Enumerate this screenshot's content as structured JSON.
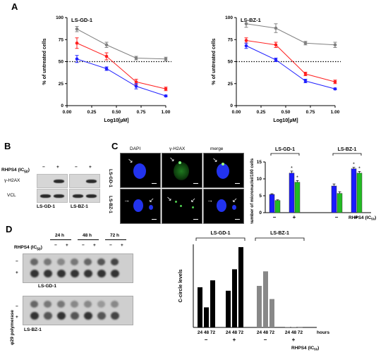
{
  "panels": {
    "a": "A",
    "b": "B",
    "c": "C",
    "d": "D"
  },
  "panel_a": {
    "chart_data": [
      {
        "type": "line",
        "title": "LS-GD-1",
        "xlabel": "Log10[µM]",
        "ylabel": "% of untreated cells",
        "xlim": [
          0,
          1.0
        ],
        "ylim": [
          0,
          100
        ],
        "xticks": [
          "0.00",
          "0.25",
          "0.50",
          "0.75",
          "1.00"
        ],
        "yticks": [
          "0",
          "25",
          "50",
          "75",
          "100"
        ],
        "reference_line": 50,
        "series": [
          {
            "color": "#808080",
            "x": [
              0.1,
              0.4,
              0.7,
              1.0
            ],
            "y": [
              87,
              69,
              54,
              53
            ],
            "err": [
              3,
              3,
              2,
              2
            ]
          },
          {
            "color": "#ff2020",
            "x": [
              0.1,
              0.4,
              0.7,
              1.0
            ],
            "y": [
              71,
              56,
              27,
              19
            ],
            "err": [
              6,
              4,
              3,
              2
            ]
          },
          {
            "color": "#2020ff",
            "x": [
              0.1,
              0.4,
              0.7,
              1.0
            ],
            "y": [
              53,
              42,
              22,
              11
            ],
            "err": [
              4,
              2,
              3,
              1
            ]
          }
        ]
      },
      {
        "type": "line",
        "title": "LS-BZ-1",
        "xlabel": "Log10[µM]",
        "ylabel": "% of untreated cells",
        "xlim": [
          0,
          1.0
        ],
        "ylim": [
          0,
          100
        ],
        "xticks": [
          "0.00",
          "0.25",
          "0.50",
          "0.75",
          "1.00"
        ],
        "yticks": [
          "0",
          "25",
          "50",
          "75",
          "100"
        ],
        "reference_line": 50,
        "series": [
          {
            "color": "#808080",
            "x": [
              0.1,
              0.4,
              0.7,
              1.0
            ],
            "y": [
              93,
              88,
              71,
              69
            ],
            "err": [
              4,
              5,
              2,
              3
            ]
          },
          {
            "color": "#ff2020",
            "x": [
              0.1,
              0.4,
              0.7,
              1.0
            ],
            "y": [
              74,
              69,
              36,
              27
            ],
            "err": [
              3,
              3,
              2,
              2
            ]
          },
          {
            "color": "#2020ff",
            "x": [
              0.1,
              0.4,
              0.7,
              1.0
            ],
            "y": [
              68,
              52,
              28,
              19
            ],
            "err": [
              3,
              2,
              2,
              1
            ]
          }
        ]
      }
    ]
  },
  "panel_b": {
    "treatment_label": "RHPS4 (IC",
    "treatment_sub": "50",
    "treatment_close": ")",
    "signs": [
      "−",
      "+",
      "−",
      "+"
    ],
    "row1": "γ-H2AX",
    "row2": "VCL",
    "lines": [
      "LS-GD-1",
      "LS-BZ-1"
    ]
  },
  "panel_c": {
    "col_labels": [
      "DAPI",
      "γ-H2AX",
      "merge"
    ],
    "row_labels": [
      "LS-GD-1",
      "LS-BZ-1"
    ],
    "chart_data": {
      "type": "bar",
      "ylabel": "number of micronuclei/100 cells",
      "ylim": [
        0,
        15
      ],
      "yticks": [
        "0",
        "5",
        "10",
        "15"
      ],
      "groups": [
        "LS-GD-1",
        "LS-BZ-1"
      ],
      "signs": [
        "−",
        "+",
        "−",
        "+"
      ],
      "xlabel": "RHPS4 (IC",
      "xlabel_sub": "50",
      "xlabel_close": ")",
      "colors": [
        "#1a1aff",
        "#22bb22"
      ],
      "bars": [
        {
          "group": 0,
          "treat": "−",
          "values": [
            5.4,
            3.6
          ],
          "err": [
            0.2,
            0.2
          ]
        },
        {
          "group": 0,
          "treat": "+",
          "values": [
            11.7,
            9.0
          ],
          "err": [
            0.6,
            0.5
          ]
        },
        {
          "group": 1,
          "treat": "−",
          "values": [
            7.9,
            5.7
          ],
          "err": [
            0.6,
            0.5
          ]
        },
        {
          "group": 1,
          "treat": "+",
          "values": [
            13.0,
            11.7
          ],
          "err": [
            0.4,
            0.5
          ]
        }
      ],
      "annotations": [
        "*",
        "*",
        "*",
        "*"
      ]
    }
  },
  "panel_d": {
    "timepoints": [
      "24 h",
      "48 h",
      "72 h"
    ],
    "treatment_label": "RHPS4 (IC",
    "treatment_sub": "50",
    "treatment_close": ")",
    "signs": [
      "−",
      "+",
      "−",
      "+",
      "−",
      "+"
    ],
    "side_label": "φ29 polymerase",
    "side_signs": [
      "−",
      "+"
    ],
    "lines": [
      "LS-GD-1",
      "LS-BZ-1"
    ],
    "chart_data": {
      "type": "bar",
      "ylabel": "C-circle levels",
      "groups": [
        "LS-GD-1",
        "LS-BZ-1"
      ],
      "x_ticks": [
        "24",
        "48",
        "72"
      ],
      "x_unit": "hours",
      "signs": [
        "−",
        "+",
        "−",
        "+"
      ],
      "xlabel": "RHPS4 (IC",
      "xlabel_sub": "50",
      "xlabel_close": ")",
      "colors": [
        "#000000",
        "#888888"
      ],
      "bars": [
        {
          "group": 0,
          "treat": "−",
          "values": [
            2900,
            1450,
            3400
          ]
        },
        {
          "group": 0,
          "treat": "+",
          "values": [
            2650,
            4200,
            5800
          ]
        },
        {
          "group": 1,
          "treat": "−",
          "values": [
            3000,
            4050,
            2050
          ]
        },
        {
          "group": 1,
          "treat": "+",
          "values": [
            20,
            30,
            10
          ]
        }
      ],
      "ylim": [
        0,
        6000
      ]
    }
  }
}
